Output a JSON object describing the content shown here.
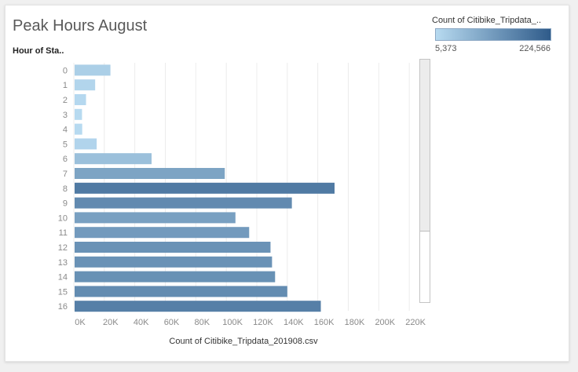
{
  "title": "Peak Hours August",
  "colors": {
    "low": "#b7daf0",
    "high": "#2f5b8a",
    "axis_text": "#8a8a8a",
    "gridline": "#ececec"
  },
  "legend": {
    "title": "Count of Citibike_Tripdata_..",
    "min_label": "5,373",
    "max_label": "224,566"
  },
  "chart_data": {
    "type": "bar",
    "orientation": "horizontal",
    "title": "Peak Hours August",
    "ylabel": "Hour of Sta..",
    "xlabel": "Count of Citibike_Tripdata_201908.csv",
    "categories": [
      "0",
      "1",
      "2",
      "3",
      "4",
      "5",
      "6",
      "7",
      "8",
      "9",
      "10",
      "11",
      "12",
      "13",
      "14",
      "15",
      "16"
    ],
    "values": [
      24000,
      14000,
      8000,
      5373,
      5500,
      15000,
      51000,
      99000,
      171000,
      143000,
      106000,
      115000,
      129000,
      130000,
      132000,
      140000,
      162000
    ],
    "xlim": [
      0,
      224566
    ],
    "x_ticks": [
      0,
      20000,
      40000,
      60000,
      80000,
      100000,
      120000,
      140000,
      160000,
      180000,
      200000,
      220000
    ],
    "x_tick_labels": [
      "0K",
      "20K",
      "40K",
      "60K",
      "80K",
      "100K",
      "120K",
      "140K",
      "160K",
      "180K",
      "200K",
      "220K"
    ],
    "color_range": [
      5373,
      224566
    ],
    "grid": true,
    "legend_position": "top-right"
  }
}
